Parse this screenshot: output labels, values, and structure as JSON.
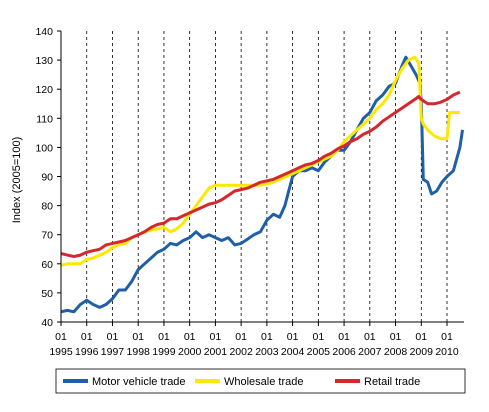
{
  "chart_data": {
    "type": "line",
    "title": "",
    "xlabel": "",
    "ylabel": "Index (2005=100)",
    "ylim": [
      40,
      140
    ],
    "yticks": [
      40,
      50,
      60,
      70,
      80,
      90,
      100,
      110,
      120,
      130,
      140
    ],
    "x_month_labels": [
      "01",
      "01",
      "01",
      "01",
      "01",
      "01",
      "01",
      "01",
      "01",
      "01",
      "01",
      "01",
      "01",
      "01",
      "01",
      "01"
    ],
    "x_year_labels": [
      "1995",
      "1996",
      "1997",
      "1998",
      "1999",
      "2000",
      "2001",
      "2002",
      "2003",
      "2004",
      "2005",
      "2006",
      "2007",
      "2008",
      "2009",
      "2010"
    ],
    "gridlines": "dashed vertical at each year",
    "legend_position": "bottom",
    "colors": {
      "motor": "#1f5fa8",
      "wholesale": "#ffe800",
      "retail": "#d6272d",
      "axis": "#000000",
      "grid": "#000000"
    },
    "series": [
      {
        "name": "Motor vehicle trade",
        "color": "#1f5fa8",
        "points": [
          [
            1995.0,
            43.5
          ],
          [
            1995.25,
            44
          ],
          [
            1995.5,
            43.5
          ],
          [
            1995.75,
            46
          ],
          [
            1996.0,
            47.5
          ],
          [
            1996.25,
            46
          ],
          [
            1996.5,
            45
          ],
          [
            1996.75,
            46
          ],
          [
            1997.0,
            48
          ],
          [
            1997.25,
            51
          ],
          [
            1997.5,
            51
          ],
          [
            1997.75,
            54
          ],
          [
            1998.0,
            58
          ],
          [
            1998.25,
            60
          ],
          [
            1998.5,
            62
          ],
          [
            1998.75,
            64
          ],
          [
            1999.0,
            65
          ],
          [
            1999.25,
            67
          ],
          [
            1999.5,
            66.5
          ],
          [
            1999.75,
            68
          ],
          [
            2000.0,
            69
          ],
          [
            2000.25,
            71
          ],
          [
            2000.5,
            69
          ],
          [
            2000.75,
            70
          ],
          [
            2001.0,
            69
          ],
          [
            2001.25,
            68
          ],
          [
            2001.5,
            69
          ],
          [
            2001.75,
            66.5
          ],
          [
            2002.0,
            67
          ],
          [
            2002.25,
            68.5
          ],
          [
            2002.5,
            70
          ],
          [
            2002.75,
            71
          ],
          [
            2003.0,
            75
          ],
          [
            2003.25,
            77
          ],
          [
            2003.5,
            76
          ],
          [
            2003.7,
            80
          ],
          [
            2003.85,
            85
          ],
          [
            2004.0,
            90
          ],
          [
            2004.25,
            92
          ],
          [
            2004.5,
            92
          ],
          [
            2004.75,
            93
          ],
          [
            2005.0,
            92
          ],
          [
            2005.25,
            95
          ],
          [
            2005.5,
            97
          ],
          [
            2005.75,
            99
          ],
          [
            2006.0,
            99
          ],
          [
            2006.25,
            102
          ],
          [
            2006.5,
            106
          ],
          [
            2006.75,
            110
          ],
          [
            2007.0,
            112
          ],
          [
            2007.25,
            116
          ],
          [
            2007.5,
            118
          ],
          [
            2007.75,
            121
          ],
          [
            2008.0,
            122
          ],
          [
            2008.25,
            128
          ],
          [
            2008.4,
            131
          ],
          [
            2008.6,
            128
          ],
          [
            2008.8,
            125
          ],
          [
            2008.95,
            122
          ],
          [
            2009.0,
            115
          ],
          [
            2009.08,
            89
          ],
          [
            2009.25,
            88
          ],
          [
            2009.4,
            84
          ],
          [
            2009.6,
            85
          ],
          [
            2009.8,
            88
          ],
          [
            2010.0,
            90
          ],
          [
            2010.25,
            92
          ],
          [
            2010.5,
            100
          ],
          [
            2010.6,
            106
          ]
        ]
      },
      {
        "name": "Wholesale trade",
        "color": "#ffe800",
        "points": [
          [
            1995.0,
            59.5
          ],
          [
            1995.25,
            60
          ],
          [
            1995.5,
            60
          ],
          [
            1995.75,
            60
          ],
          [
            1996.0,
            61.5
          ],
          [
            1996.25,
            62
          ],
          [
            1996.5,
            63
          ],
          [
            1996.75,
            64
          ],
          [
            1997.0,
            65.5
          ],
          [
            1997.25,
            66.5
          ],
          [
            1997.5,
            67
          ],
          [
            1997.75,
            69
          ],
          [
            1998.0,
            70
          ],
          [
            1998.25,
            71
          ],
          [
            1998.5,
            71.5
          ],
          [
            1998.75,
            72
          ],
          [
            1999.0,
            72.5
          ],
          [
            1999.25,
            71
          ],
          [
            1999.5,
            72
          ],
          [
            1999.75,
            74
          ],
          [
            2000.0,
            77
          ],
          [
            2000.25,
            80
          ],
          [
            2000.5,
            83
          ],
          [
            2000.75,
            86
          ],
          [
            2001.0,
            87
          ],
          [
            2001.25,
            87
          ],
          [
            2001.5,
            87
          ],
          [
            2001.75,
            87
          ],
          [
            2002.0,
            87
          ],
          [
            2002.25,
            87
          ],
          [
            2002.5,
            87
          ],
          [
            2002.75,
            87
          ],
          [
            2003.0,
            87.5
          ],
          [
            2003.25,
            88
          ],
          [
            2003.5,
            89
          ],
          [
            2003.75,
            90
          ],
          [
            2004.0,
            91
          ],
          [
            2004.25,
            92
          ],
          [
            2004.5,
            93
          ],
          [
            2004.75,
            94
          ],
          [
            2005.0,
            95
          ],
          [
            2005.25,
            96
          ],
          [
            2005.5,
            97
          ],
          [
            2005.75,
            99
          ],
          [
            2006.0,
            102
          ],
          [
            2006.25,
            104
          ],
          [
            2006.5,
            106
          ],
          [
            2006.75,
            108
          ],
          [
            2007.0,
            110
          ],
          [
            2007.25,
            113
          ],
          [
            2007.5,
            115
          ],
          [
            2007.75,
            118
          ],
          [
            2008.0,
            123
          ],
          [
            2008.25,
            127
          ],
          [
            2008.5,
            130
          ],
          [
            2008.75,
            131
          ],
          [
            2008.9,
            129
          ],
          [
            2009.0,
            110
          ],
          [
            2009.08,
            108
          ],
          [
            2009.25,
            106
          ],
          [
            2009.5,
            104
          ],
          [
            2009.75,
            103
          ],
          [
            2010.0,
            103
          ],
          [
            2010.1,
            112
          ],
          [
            2010.35,
            112
          ],
          [
            2010.5,
            112
          ]
        ]
      },
      {
        "name": "Retail trade",
        "color": "#d6272d",
        "points": [
          [
            1995.0,
            63.5
          ],
          [
            1995.25,
            63
          ],
          [
            1995.5,
            62.5
          ],
          [
            1995.75,
            63
          ],
          [
            1996.0,
            64
          ],
          [
            1996.25,
            64.5
          ],
          [
            1996.5,
            65
          ],
          [
            1996.75,
            66.5
          ],
          [
            1997.0,
            67
          ],
          [
            1997.25,
            67.5
          ],
          [
            1997.5,
            68
          ],
          [
            1997.75,
            69
          ],
          [
            1998.0,
            70
          ],
          [
            1998.25,
            71
          ],
          [
            1998.5,
            72.5
          ],
          [
            1998.75,
            73.5
          ],
          [
            1999.0,
            74
          ],
          [
            1999.25,
            75.5
          ],
          [
            1999.5,
            75.5
          ],
          [
            1999.75,
            76.5
          ],
          [
            2000.0,
            77.5
          ],
          [
            2000.25,
            78.5
          ],
          [
            2000.5,
            79.5
          ],
          [
            2000.75,
            80.5
          ],
          [
            2001.0,
            81
          ],
          [
            2001.25,
            82
          ],
          [
            2001.5,
            83.5
          ],
          [
            2001.75,
            85
          ],
          [
            2002.0,
            85.5
          ],
          [
            2002.25,
            86
          ],
          [
            2002.5,
            87
          ],
          [
            2002.75,
            88
          ],
          [
            2003.0,
            88.5
          ],
          [
            2003.25,
            89
          ],
          [
            2003.5,
            90
          ],
          [
            2003.75,
            91
          ],
          [
            2004.0,
            92
          ],
          [
            2004.25,
            93
          ],
          [
            2004.5,
            94
          ],
          [
            2004.75,
            94.5
          ],
          [
            2005.0,
            95.5
          ],
          [
            2005.25,
            97
          ],
          [
            2005.5,
            98
          ],
          [
            2005.75,
            99.5
          ],
          [
            2006.0,
            100.5
          ],
          [
            2006.25,
            102
          ],
          [
            2006.5,
            103
          ],
          [
            2006.75,
            104.5
          ],
          [
            2007.0,
            105.5
          ],
          [
            2007.25,
            107
          ],
          [
            2007.5,
            109
          ],
          [
            2007.75,
            110.5
          ],
          [
            2008.0,
            112
          ],
          [
            2008.25,
            113.5
          ],
          [
            2008.5,
            115
          ],
          [
            2008.75,
            116.5
          ],
          [
            2008.9,
            117.5
          ],
          [
            2009.0,
            116.5
          ],
          [
            2009.25,
            115
          ],
          [
            2009.5,
            115
          ],
          [
            2009.75,
            115.5
          ],
          [
            2010.0,
            116.5
          ],
          [
            2010.25,
            118
          ],
          [
            2010.5,
            119
          ]
        ]
      }
    ]
  }
}
